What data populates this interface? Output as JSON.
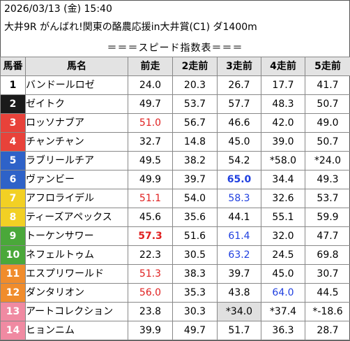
{
  "header": {
    "date_line": "2026/03/13 (金) 15:40",
    "race_line": "大井9R がんばれ!関東の酪農応援in大井賞(C1) ダ1400m",
    "caption": "＝＝＝スピード指数表＝＝＝"
  },
  "columns": [
    "馬番",
    "馬名",
    "前走",
    "2走前",
    "3走前",
    "4走前",
    "5走前"
  ],
  "colors": {
    "red_value": "#e02020",
    "blue_value": "#2040e0",
    "header_bg": "#e3e3e3",
    "highlight_cell": "#e0e0e0"
  },
  "rows": [
    {
      "num": "1",
      "name": "バンドールロゼ",
      "bg": "#ffffff",
      "fg": "#000000",
      "c1": "24.0",
      "c2": "20.3",
      "c3": "26.7",
      "c4": "17.7",
      "c5": "41.7"
    },
    {
      "num": "2",
      "name": "ゼイトク",
      "bg": "#1a1a1a",
      "fg": "#ffffff",
      "c1": "49.7",
      "c2": "53.7",
      "c3": "57.7",
      "c4": "48.3",
      "c5": "50.7"
    },
    {
      "num": "3",
      "name": "ロッソナブア",
      "bg": "#e8423a",
      "fg": "#ffffff",
      "c1": "51.0",
      "c2": "56.7",
      "c3": "46.6",
      "c4": "42.0",
      "c5": "49.0"
    },
    {
      "num": "4",
      "name": "チャンチャン",
      "bg": "#e8423a",
      "fg": "#ffffff",
      "c1": "32.7",
      "c2": "14.8",
      "c3": "45.0",
      "c4": "39.0",
      "c5": "50.7"
    },
    {
      "num": "5",
      "name": "ラブリールチア",
      "bg": "#2e62c8",
      "fg": "#ffffff",
      "c1": "49.5",
      "c2": "38.2",
      "c3": "54.2",
      "c4": "*58.0",
      "c5": "*24.0"
    },
    {
      "num": "6",
      "name": "ヴァンビー",
      "bg": "#2e62c8",
      "fg": "#ffffff",
      "c1": "49.9",
      "c2": "39.7",
      "c3": "65.0",
      "c4": "34.4",
      "c5": "49.3"
    },
    {
      "num": "7",
      "name": "アフロライデル",
      "bg": "#f2d024",
      "fg": "#ffffff",
      "c1": "51.1",
      "c2": "54.0",
      "c3": "58.3",
      "c4": "32.6",
      "c5": "53.7"
    },
    {
      "num": "8",
      "name": "ティーズアペックス",
      "bg": "#f2d024",
      "fg": "#ffffff",
      "c1": "45.6",
      "c2": "35.6",
      "c3": "44.1",
      "c4": "55.1",
      "c5": "59.9"
    },
    {
      "num": "9",
      "name": "トーケンサワー",
      "bg": "#4aa83a",
      "fg": "#ffffff",
      "c1": "57.3",
      "c2": "51.6",
      "c3": "61.4",
      "c4": "32.0",
      "c5": "47.7"
    },
    {
      "num": "10",
      "name": "ネフェルトゥム",
      "bg": "#4aa83a",
      "fg": "#ffffff",
      "c1": "22.3",
      "c2": "30.5",
      "c3": "63.2",
      "c4": "24.5",
      "c5": "69.8"
    },
    {
      "num": "11",
      "name": "エスプリワールド",
      "bg": "#f08c2c",
      "fg": "#ffffff",
      "c1": "51.3",
      "c2": "38.3",
      "c3": "39.7",
      "c4": "45.0",
      "c5": "30.7"
    },
    {
      "num": "12",
      "name": "ダンタリオン",
      "bg": "#f08c2c",
      "fg": "#ffffff",
      "c1": "56.0",
      "c2": "35.3",
      "c3": "43.8",
      "c4": "64.0",
      "c5": "44.5"
    },
    {
      "num": "13",
      "name": "アートコレクション",
      "bg": "#f08aa2",
      "fg": "#ffffff",
      "c1": "23.8",
      "c2": "30.3",
      "c3": "*34.0",
      "c4": "*37.4",
      "c5": "*-18.6"
    },
    {
      "num": "14",
      "name": "ヒョンニム",
      "bg": "#f08aa2",
      "fg": "#ffffff",
      "c1": "39.9",
      "c2": "49.7",
      "c3": "51.7",
      "c4": "36.3",
      "c5": "28.7"
    }
  ]
}
